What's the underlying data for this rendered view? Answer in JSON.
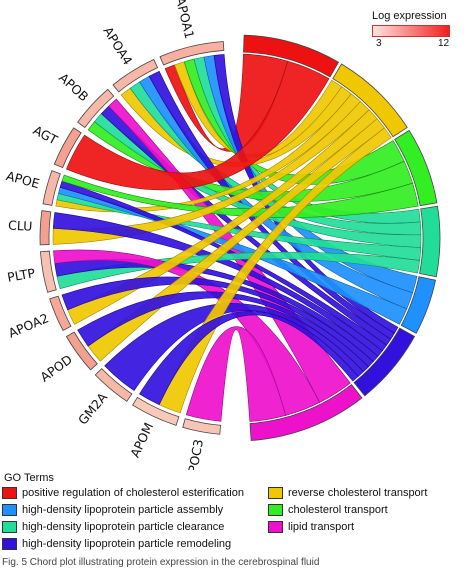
{
  "genes": [
    {
      "name": "APOA1",
      "color": "#f8b0a0"
    },
    {
      "name": "APOA4",
      "color": "#f8b8a8"
    },
    {
      "name": "APOB",
      "color": "#f8baa8"
    },
    {
      "name": "AGT",
      "color": "#f6a090"
    },
    {
      "name": "APOE",
      "color": "#f8b8a8"
    },
    {
      "name": "CLU",
      "color": "#f4a090"
    },
    {
      "name": "PLTP",
      "color": "#f8c0b0"
    },
    {
      "name": "APOA2",
      "color": "#f6a898"
    },
    {
      "name": "APOD",
      "color": "#f4a090"
    },
    {
      "name": "GM2A",
      "color": "#f8b8a8"
    },
    {
      "name": "APOM",
      "color": "#f8c8b8"
    },
    {
      "name": "APOC3",
      "color": "#f8c4b4"
    }
  ],
  "scale": {
    "title": "Log expression",
    "min_label": "3",
    "max_label": "12",
    "min_color": "#ffe4e0",
    "max_color": "#f02020"
  },
  "legend": {
    "title": "GO Terms",
    "items": [
      {
        "label": "positive regulation of cholesterol esterification",
        "color": "#ee1111"
      },
      {
        "label": "high-density lipoprotein particle assembly",
        "color": "#1e90ff"
      },
      {
        "label": "high-density lipoprotein particle clearance",
        "color": "#22dd99"
      },
      {
        "label": "high-density lipoprotein particle remodeling",
        "color": "#3311dd"
      },
      {
        "label": "reverse cholesterol transport",
        "color": "#f0c800"
      },
      {
        "label": "cholesterol transport",
        "color": "#33ee22"
      },
      {
        "label": "lipid transport",
        "color": "#ee11cc"
      }
    ]
  },
  "caption": "Fig. 5   Chord plot illustrating protein expression in the cerebrospinal fluid"
}
